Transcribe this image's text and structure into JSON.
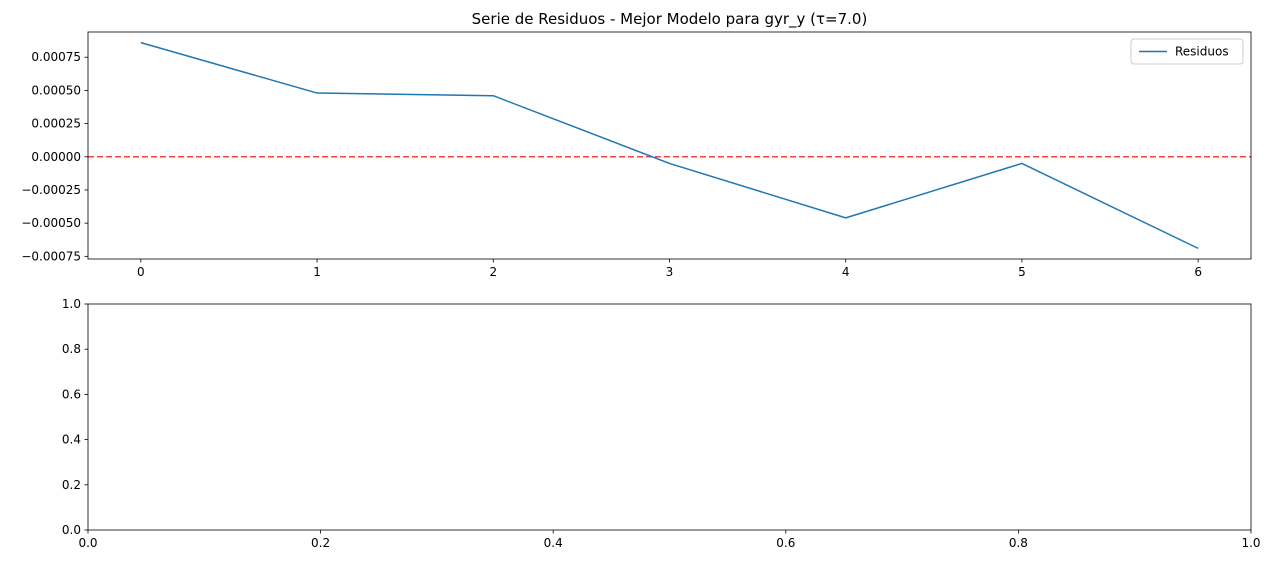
{
  "chart_data": [
    {
      "type": "line",
      "title": "Serie de Residuos - Mejor Modelo para gyr_y (τ=7.0)",
      "xlabel": "",
      "ylabel": "",
      "x": [
        0,
        1,
        2,
        3,
        4,
        5,
        6
      ],
      "series": [
        {
          "name": "Residuos",
          "color": "#1f77b4",
          "values": [
            0.00086,
            0.00048,
            0.00046,
            -5e-05,
            -0.00046,
            -5e-05,
            -0.00069
          ]
        }
      ],
      "reference_line": {
        "y": 0,
        "color": "#ff0000",
        "style": "dashed"
      },
      "xticks": [
        0,
        1,
        2,
        3,
        4,
        5,
        6
      ],
      "xtick_labels": [
        "0",
        "1",
        "2",
        "3",
        "4",
        "5",
        "6"
      ],
      "yticks": [
        -0.00075,
        -0.0005,
        -0.00025,
        0,
        0.00025,
        0.0005,
        0.00075
      ],
      "ytick_labels": [
        "−0.00075",
        "−0.00050",
        "−0.00025",
        "0.00000",
        "0.00025",
        "0.00050",
        "0.00075"
      ],
      "xlim": [
        -0.3,
        6.3
      ],
      "ylim": [
        -0.00077,
        0.00094
      ],
      "grid": false,
      "legend": "top-right"
    },
    {
      "type": "line",
      "title": "",
      "xlabel": "",
      "ylabel": "",
      "series": [],
      "xticks": [
        0,
        0.2,
        0.4,
        0.6,
        0.8,
        1.0
      ],
      "xtick_labels": [
        "0.0",
        "0.2",
        "0.4",
        "0.6",
        "0.8",
        "1.0"
      ],
      "yticks": [
        0,
        0.2,
        0.4,
        0.6,
        0.8,
        1.0
      ],
      "ytick_labels": [
        "0.0",
        "0.2",
        "0.4",
        "0.6",
        "0.8",
        "1.0"
      ],
      "xlim": [
        0,
        1
      ],
      "ylim": [
        0,
        1
      ],
      "grid": false
    }
  ]
}
